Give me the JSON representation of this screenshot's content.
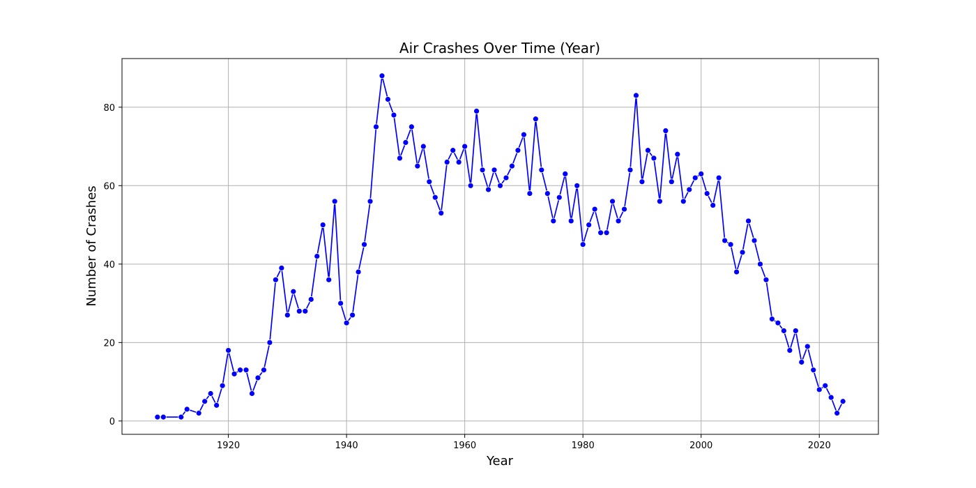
{
  "chart_data": {
    "type": "line",
    "title": "Air Crashes Over Time (Year)",
    "xlabel": "Year",
    "ylabel": "Number of Crashes",
    "xlim": [
      1902,
      2030
    ],
    "ylim": [
      -3.4,
      92.4
    ],
    "x_ticks": [
      1920,
      1940,
      1960,
      1980,
      2000,
      2020
    ],
    "y_ticks": [
      0,
      20,
      40,
      60,
      80
    ],
    "grid": true,
    "legend": "none",
    "series": [
      {
        "color": "#0000ff",
        "marker": "circle",
        "x": [
          1908,
          1909,
          1912,
          1913,
          1915,
          1916,
          1917,
          1918,
          1919,
          1920,
          1921,
          1922,
          1923,
          1924,
          1925,
          1926,
          1927,
          1928,
          1929,
          1930,
          1931,
          1932,
          1933,
          1934,
          1935,
          1936,
          1937,
          1938,
          1939,
          1940,
          1941,
          1942,
          1943,
          1944,
          1945,
          1946,
          1947,
          1948,
          1949,
          1950,
          1951,
          1952,
          1953,
          1954,
          1955,
          1956,
          1957,
          1958,
          1959,
          1960,
          1961,
          1962,
          1963,
          1964,
          1965,
          1966,
          1967,
          1968,
          1969,
          1970,
          1971,
          1972,
          1973,
          1974,
          1975,
          1976,
          1977,
          1978,
          1979,
          1980,
          1981,
          1982,
          1983,
          1984,
          1985,
          1986,
          1987,
          1988,
          1989,
          1990,
          1991,
          1992,
          1993,
          1994,
          1995,
          1996,
          1997,
          1998,
          1999,
          2000,
          2001,
          2002,
          2003,
          2004,
          2005,
          2006,
          2007,
          2008,
          2009,
          2010,
          2011,
          2012,
          2013,
          2014,
          2015,
          2016,
          2017,
          2018,
          2019,
          2020,
          2021,
          2022,
          2023,
          2024
        ],
        "values": [
          1,
          1,
          1,
          3,
          2,
          5,
          7,
          4,
          9,
          18,
          12,
          13,
          13,
          7,
          11,
          13,
          20,
          36,
          39,
          27,
          33,
          28,
          28,
          31,
          42,
          50,
          36,
          56,
          30,
          25,
          27,
          38,
          45,
          56,
          75,
          88,
          82,
          78,
          67,
          71,
          75,
          65,
          70,
          61,
          57,
          53,
          66,
          69,
          66,
          70,
          60,
          79,
          64,
          59,
          64,
          60,
          62,
          65,
          69,
          73,
          58,
          77,
          64,
          58,
          51,
          57,
          63,
          51,
          60,
          45,
          50,
          54,
          48,
          48,
          56,
          51,
          54,
          64,
          83,
          61,
          69,
          67,
          56,
          74,
          61,
          68,
          56,
          59,
          62,
          63,
          58,
          55,
          62,
          46,
          45,
          38,
          43,
          51,
          46,
          40,
          36,
          26,
          25,
          23,
          18,
          23,
          15,
          19,
          13,
          8,
          9,
          6,
          2,
          5
        ]
      }
    ]
  }
}
